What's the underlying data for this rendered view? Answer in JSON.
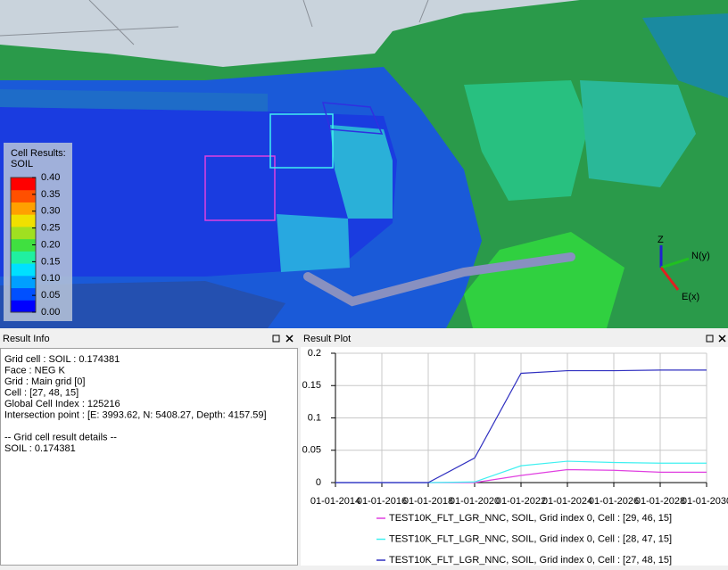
{
  "viewer": {
    "legend_title": "Cell Results:",
    "legend_result": "SOIL",
    "legend_ticks": [
      {
        "value": 0.4,
        "label": "0.40"
      },
      {
        "value": 0.35,
        "label": "0.35"
      },
      {
        "value": 0.3,
        "label": "0.30"
      },
      {
        "value": 0.25,
        "label": "0.25"
      },
      {
        "value": 0.2,
        "label": "0.20"
      },
      {
        "value": 0.15,
        "label": "0.15"
      },
      {
        "value": 0.1,
        "label": "0.10"
      },
      {
        "value": 0.05,
        "label": "0.05"
      },
      {
        "value": 0,
        "label": "0.00"
      }
    ],
    "legend_range": [
      0,
      0.4
    ],
    "axis_z": "Z",
    "axis_y": "N(y)",
    "axis_x": "E(x)"
  },
  "result_info": {
    "title": "Result Info",
    "lines": [
      "Grid cell : SOIL : 0.174381",
      "Face : NEG K",
      "Grid : Main grid [0]",
      "Cell : [27, 48, 15]",
      "Global Cell Index : 125216",
      "Intersection point : [E: 3993.62, N: 5408.27, Depth: 4157.59]"
    ],
    "details_header": "-- Grid cell result details --",
    "details": [
      "SOIL : 0.174381"
    ]
  },
  "result_plot": {
    "title": "Result Plot"
  },
  "chart_data": {
    "type": "line",
    "categories": [
      "01-01-2014",
      "01-01-2016",
      "01-01-2018",
      "01-01-2020",
      "01-01-2022",
      "01-01-2024",
      "01-01-2026",
      "01-01-2028",
      "01-01-2030"
    ],
    "series": [
      {
        "name": "TEST10K_FLT_LGR_NNC, SOIL, Grid index 0, Cell : [29, 46, 15]",
        "color": "#e040e0",
        "values": [
          0,
          0,
          0,
          0,
          0.011,
          0.02,
          0.019,
          0.016,
          0.016
        ]
      },
      {
        "name": "TEST10K_FLT_LGR_NNC, SOIL, Grid index 0, Cell : [28, 47, 15]",
        "color": "#40f0f0",
        "values": [
          0,
          0,
          0,
          0.001,
          0.026,
          0.033,
          0.031,
          0.03,
          0.03
        ]
      },
      {
        "name": "TEST10K_FLT_LGR_NNC, SOIL, Grid index 0, Cell : [27, 48, 15]",
        "color": "#3030c0",
        "values": [
          0,
          0,
          0,
          0.038,
          0.169,
          0.173,
          0.173,
          0.174,
          0.174
        ]
      }
    ],
    "ylim": [
      0,
      0.2
    ],
    "yticks": [
      0,
      0.05,
      0.1,
      0.15,
      0.2
    ],
    "grid": true
  }
}
